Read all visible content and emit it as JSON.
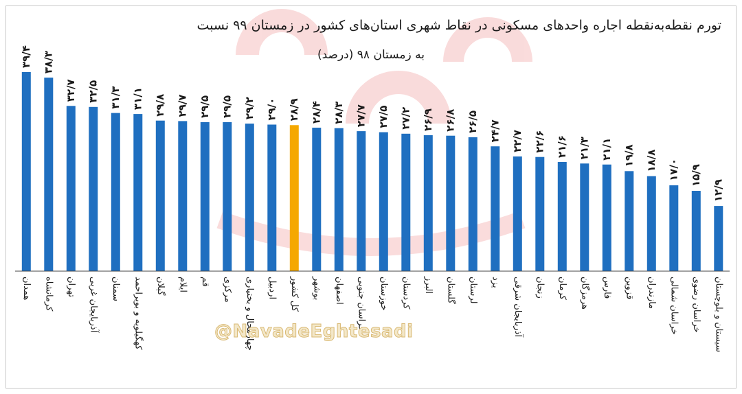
{
  "chart_data": {
    "type": "bar",
    "title": "تورم نقطه‌به‌نقطه اجاره واحدهای مسکونی در نقاط شهری استان‌های کشور در زمستان ۹۹ نسبت",
    "subtitle": "به زمستان ۹۸ (درصد)",
    "categories": [
      "همدان",
      "کرمانشاه",
      "تهران",
      "آذربایجان غربی",
      "سمنان",
      "کهگیلویه و بویراحمد",
      "گیلان",
      "ایلام",
      "قم",
      "مرکزی",
      "چهارمحال و بختیاری",
      "اردبیل",
      "کل کشور",
      "بوشهر",
      "اصفهان",
      "خراسان جنوبی",
      "خوزستان",
      "کردستان",
      "البرز",
      "گلستان",
      "لرستان",
      "یزد",
      "آذربایجان شرقی",
      "زنجان",
      "کرمان",
      "هرمزگان",
      "فارس",
      "قزوین",
      "مازندران",
      "خراسان شمالی",
      "خراسان رضوی",
      "سیستان و بلوچستان"
    ],
    "values": [
      39.4,
      38.3,
      32.7,
      32.5,
      31.3,
      31.1,
      29.8,
      29.7,
      29.5,
      29.5,
      29.2,
      29.0,
      28.9,
      28.4,
      28.3,
      27.7,
      27.5,
      27.2,
      26.9,
      26.8,
      26.5,
      24.7,
      22.7,
      22.6,
      21.6,
      21.3,
      21.1,
      19.8,
      18.8,
      17.0,
      15.9,
      12.9
    ],
    "value_labels": [
      "۳۹/۴",
      "۳۸/۳",
      "۳۲/۷",
      "۳۲/۵",
      "۳۱/۳",
      "۳۱/۱",
      "۲۹/۸",
      "۲۹/۷",
      "۲۹/۵",
      "۲۹/۵",
      "۲۹/۲",
      "۲۹/۰",
      "۲۸/۹",
      "۲۸/۴",
      "۲۸/۳",
      "۲۷/۷",
      "۲۷/۵",
      "۲۷/۲",
      "۲۶/۹",
      "۲۶/۸",
      "۲۶/۵",
      "۲۴/۷",
      "۲۲/۷",
      "۲۲/۶",
      "۲۱/۶",
      "۲۱/۳",
      "۲۱/۱",
      "۱۹/۸",
      "۱۸/۸",
      "۱۷/۰",
      "۱۵/۹",
      "۱۲/۹"
    ],
    "highlight_category": "کل کشور",
    "colors": {
      "bar": "#1f6fc0",
      "highlight": "#f5a800",
      "axis": "#444444"
    },
    "ylim": [
      0,
      40
    ],
    "grid": false,
    "legend": "none"
  },
  "watermark": {
    "handle": "@NavadeEghtesadi",
    "logo_color": "#e23b3b"
  }
}
